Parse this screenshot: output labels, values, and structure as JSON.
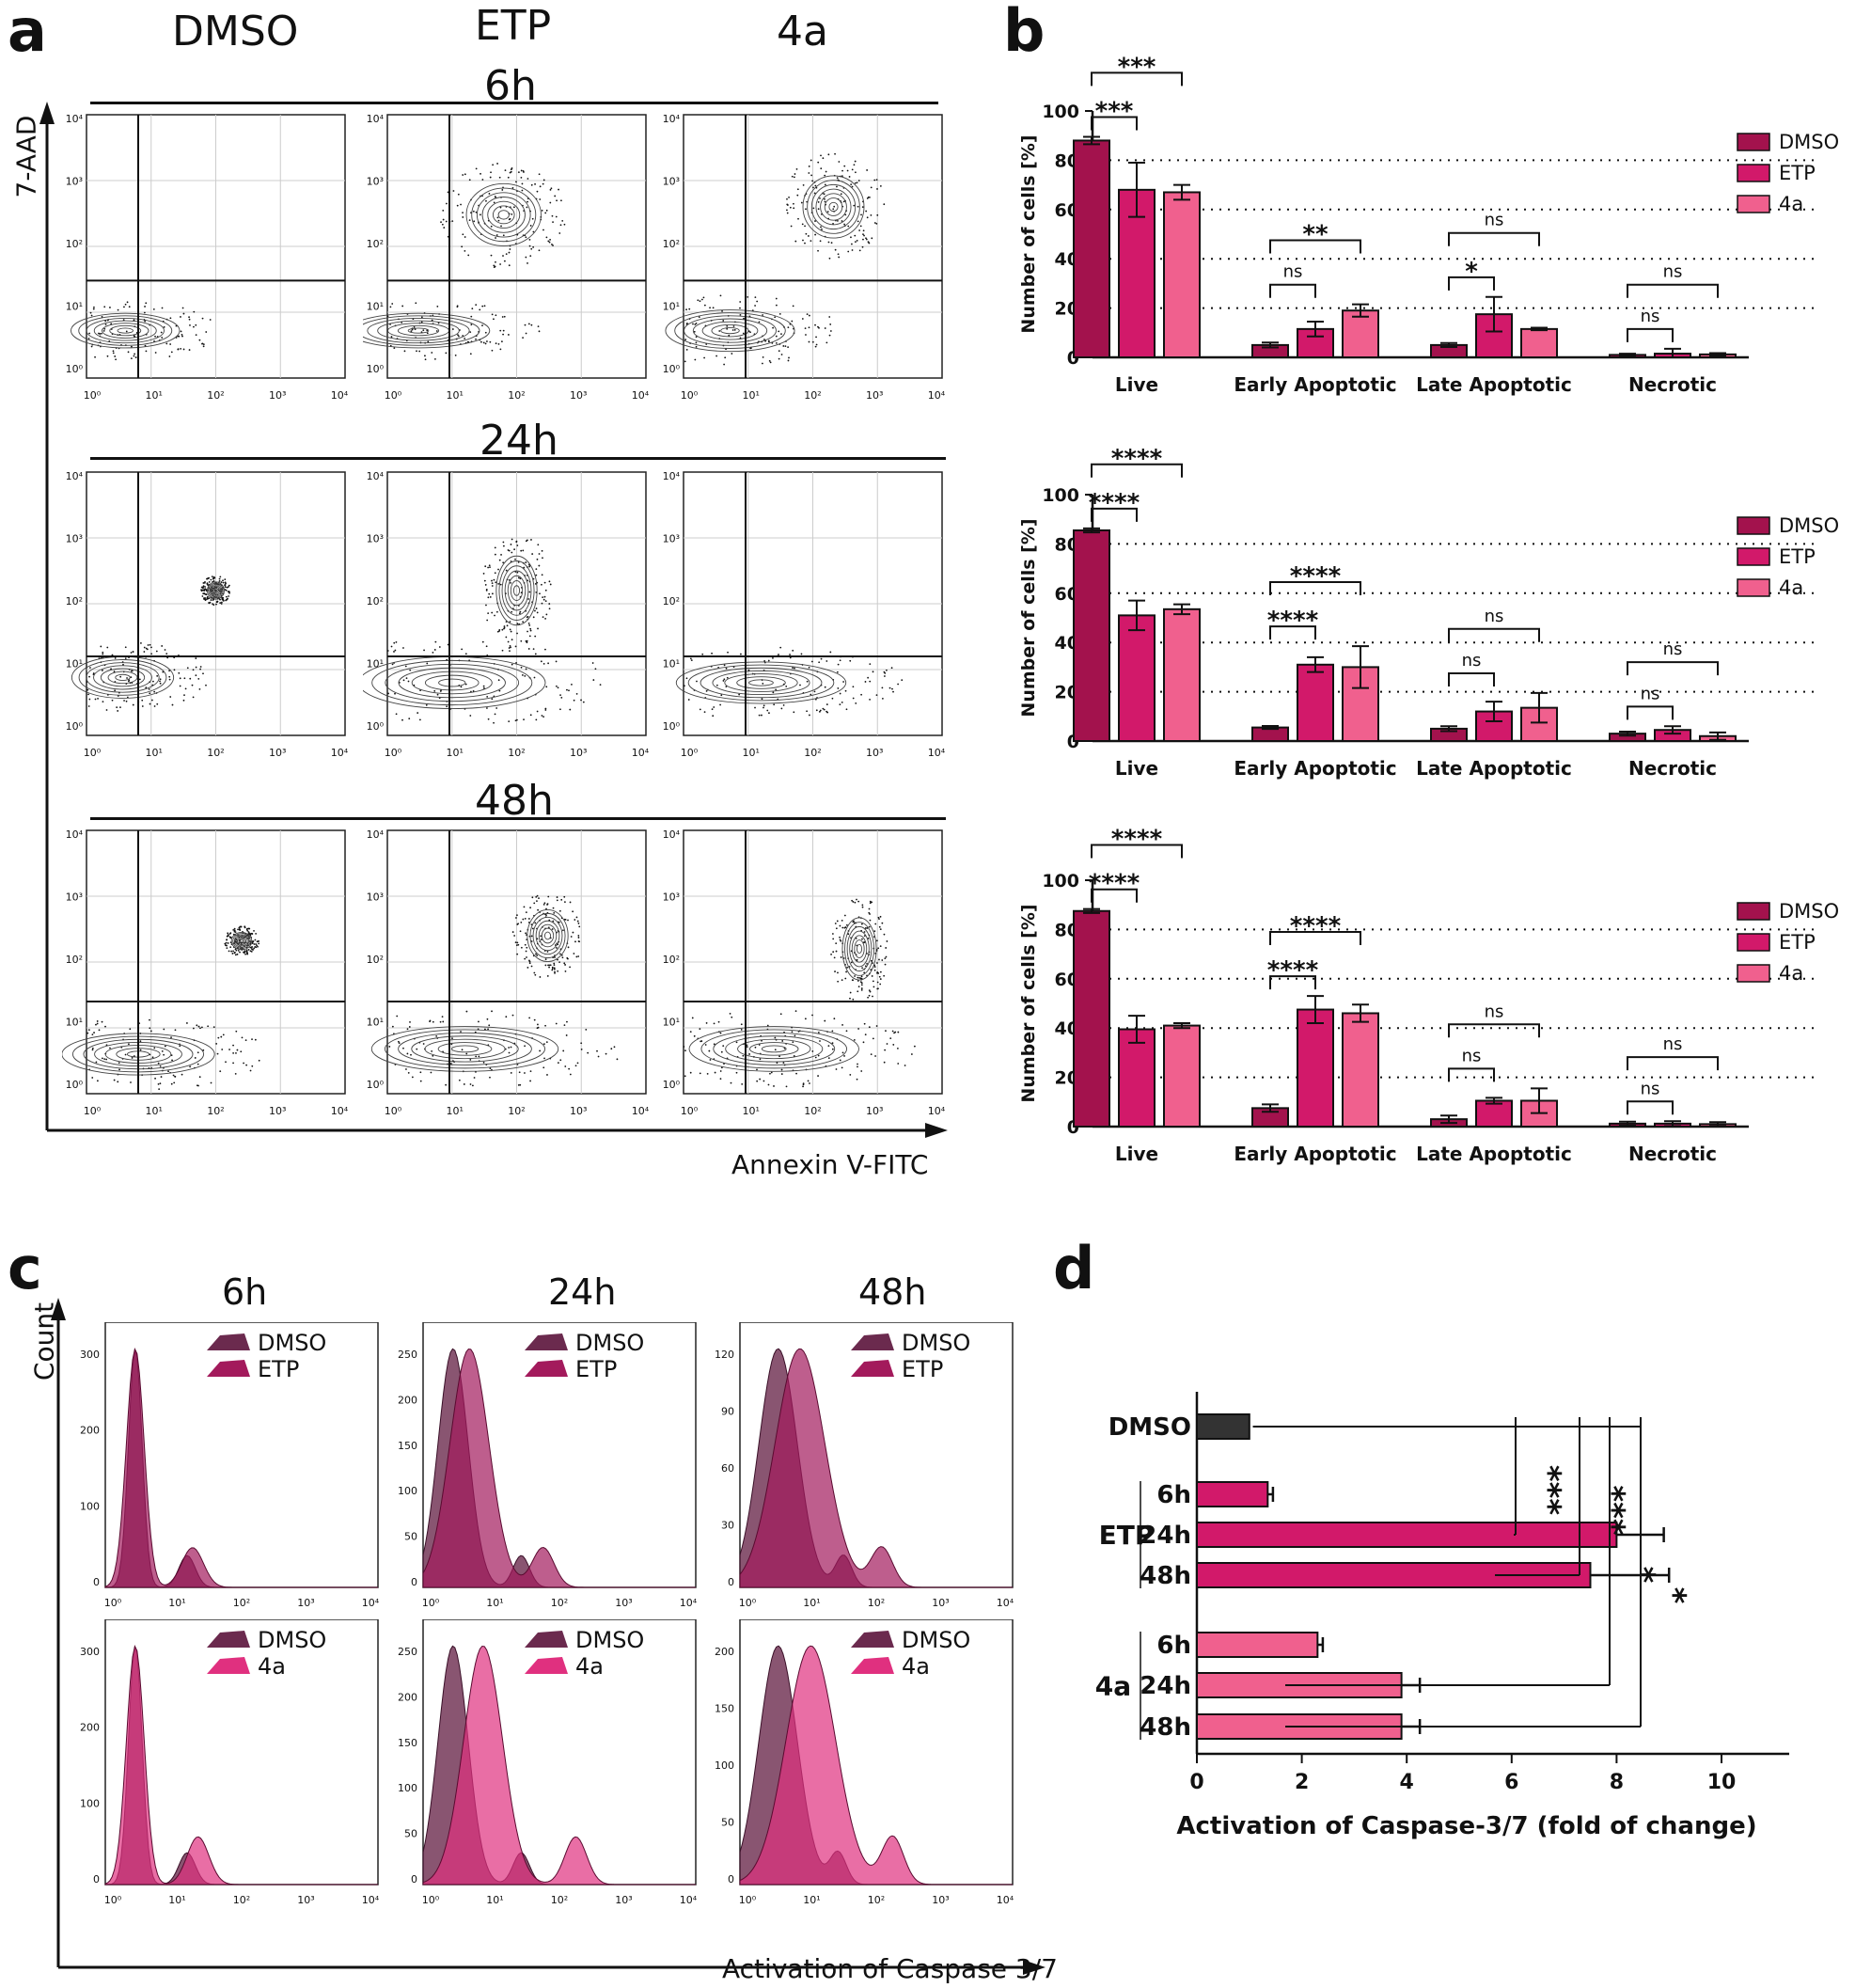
{
  "panel_a": {
    "letter": "a",
    "columns": [
      "DMSO",
      "ETP",
      "4a"
    ],
    "time_rows": [
      "6h",
      "24h",
      "48h"
    ],
    "y_axis_label": "7-AAD",
    "x_axis_label": "Annexin V-FITC",
    "tick_labels": [
      "10⁰",
      "10¹",
      "10²",
      "10³",
      "10⁴"
    ]
  },
  "panel_b": {
    "letter": "b",
    "legend": [
      "DMSO",
      "ETP",
      "4a"
    ],
    "colors": {
      "DMSO": "#a3124d",
      "ETP": "#d2196a",
      "4a": "#f0608e"
    }
  },
  "panel_c": {
    "letter": "c",
    "columns": [
      "6h",
      "24h",
      "48h"
    ],
    "y_axis_label": "Count",
    "x_axis_label": "Activation of Caspase 3/7",
    "legend_top": [
      "DMSO",
      "ETP"
    ],
    "legend_bottom": [
      "DMSO",
      "4a"
    ],
    "tick_labels": [
      "10⁰",
      "10¹",
      "10²",
      "10³",
      "10⁴"
    ],
    "y_ticks_top": [
      [
        "0",
        "100",
        "200",
        "300"
      ],
      [
        "0",
        "50",
        "100",
        "150",
        "200",
        "250"
      ],
      [
        "0",
        "30",
        "60",
        "90",
        "120"
      ]
    ],
    "y_ticks_bottom": [
      [
        "0",
        "100",
        "200",
        "300"
      ],
      [
        "0",
        "50",
        "100",
        "150",
        "200",
        "250"
      ],
      [
        "0",
        "50",
        "100",
        "150",
        "200"
      ]
    ]
  },
  "panel_d": {
    "letter": "d"
  },
  "chart_data": [
    {
      "type": "bar",
      "id": "b-6h",
      "title": "6h",
      "categories": [
        "Live",
        "Early Apoptotic",
        "Late Apoptotic",
        "Necrotic"
      ],
      "series": [
        {
          "name": "DMSO",
          "values": [
            88,
            5,
            5,
            1
          ],
          "errors": [
            1.5,
            1,
            0.8,
            0.5
          ]
        },
        {
          "name": "ETP",
          "values": [
            68,
            11.5,
            17.5,
            1.5
          ],
          "errors": [
            11,
            3,
            7,
            2
          ]
        },
        {
          "name": "4a",
          "values": [
            67,
            19,
            11.5,
            1.2
          ],
          "errors": [
            3,
            2.5,
            0.5,
            0.5
          ]
        }
      ],
      "ylabel": "Number of cells [%]",
      "ylim": [
        0,
        100
      ],
      "yticks": [
        0,
        20,
        40,
        60,
        80,
        100
      ],
      "gridlines": [
        20,
        40,
        60,
        80
      ],
      "significance": [
        {
          "category": "Live",
          "pair": [
            "DMSO",
            "ETP"
          ],
          "label": "***"
        },
        {
          "category": "Live",
          "pair": [
            "DMSO",
            "4a"
          ],
          "label": "***"
        },
        {
          "category": "Early Apoptotic",
          "pair": [
            "DMSO",
            "ETP"
          ],
          "label": "ns"
        },
        {
          "category": "Early Apoptotic",
          "pair": [
            "DMSO",
            "4a"
          ],
          "label": "**"
        },
        {
          "category": "Late Apoptotic",
          "pair": [
            "DMSO",
            "ETP"
          ],
          "label": "*"
        },
        {
          "category": "Late Apoptotic",
          "pair": [
            "DMSO",
            "4a"
          ],
          "label": "ns"
        },
        {
          "category": "Necrotic",
          "pair": [
            "DMSO",
            "ETP"
          ],
          "label": "ns"
        },
        {
          "category": "Necrotic",
          "pair": [
            "DMSO",
            "4a"
          ],
          "label": "ns"
        }
      ]
    },
    {
      "type": "bar",
      "id": "b-24h",
      "title": "24h",
      "categories": [
        "Live",
        "Early Apoptotic",
        "Late Apoptotic",
        "Necrotic"
      ],
      "series": [
        {
          "name": "DMSO",
          "values": [
            85.5,
            5.5,
            5,
            3
          ],
          "errors": [
            0.8,
            0.6,
            1,
            0.8
          ]
        },
        {
          "name": "ETP",
          "values": [
            51,
            31,
            12,
            4.5
          ],
          "errors": [
            6,
            3,
            4,
            1.5
          ]
        },
        {
          "name": "4a",
          "values": [
            53.5,
            30,
            13.5,
            2
          ],
          "errors": [
            2,
            8.5,
            6,
            1.5
          ]
        }
      ],
      "ylabel": "Number of cells [%]",
      "ylim": [
        0,
        100
      ],
      "yticks": [
        0,
        20,
        40,
        60,
        80,
        100
      ],
      "gridlines": [
        20,
        40,
        60,
        80
      ],
      "significance": [
        {
          "category": "Live",
          "pair": [
            "DMSO",
            "ETP"
          ],
          "label": "****"
        },
        {
          "category": "Live",
          "pair": [
            "DMSO",
            "4a"
          ],
          "label": "****"
        },
        {
          "category": "Early Apoptotic",
          "pair": [
            "DMSO",
            "ETP"
          ],
          "label": "****"
        },
        {
          "category": "Early Apoptotic",
          "pair": [
            "DMSO",
            "4a"
          ],
          "label": "****"
        },
        {
          "category": "Late Apoptotic",
          "pair": [
            "DMSO",
            "ETP"
          ],
          "label": "ns"
        },
        {
          "category": "Late Apoptotic",
          "pair": [
            "DMSO",
            "4a"
          ],
          "label": "ns"
        },
        {
          "category": "Necrotic",
          "pair": [
            "DMSO",
            "ETP"
          ],
          "label": "ns"
        },
        {
          "category": "Necrotic",
          "pair": [
            "DMSO",
            "4a"
          ],
          "label": "ns"
        }
      ]
    },
    {
      "type": "bar",
      "id": "b-48h",
      "title": "48h",
      "categories": [
        "Live",
        "Early Apoptotic",
        "Late Apoptotic",
        "Necrotic"
      ],
      "series": [
        {
          "name": "DMSO",
          "values": [
            87.5,
            7.5,
            3,
            1.2
          ],
          "errors": [
            0.8,
            1.5,
            1.5,
            0.8
          ]
        },
        {
          "name": "ETP",
          "values": [
            39.5,
            47.5,
            10.5,
            1.2
          ],
          "errors": [
            5.5,
            5.5,
            1.2,
            1
          ]
        },
        {
          "name": "4a",
          "values": [
            41,
            46,
            10.5,
            1
          ],
          "errors": [
            1,
            3.5,
            5,
            0.8
          ]
        }
      ],
      "ylabel": "Number of cells [%]",
      "ylim": [
        0,
        100
      ],
      "yticks": [
        0,
        20,
        40,
        60,
        80,
        100
      ],
      "gridlines": [
        20,
        40,
        60,
        80
      ],
      "significance": [
        {
          "category": "Live",
          "pair": [
            "DMSO",
            "ETP"
          ],
          "label": "****"
        },
        {
          "category": "Live",
          "pair": [
            "DMSO",
            "4a"
          ],
          "label": "****"
        },
        {
          "category": "Early Apoptotic",
          "pair": [
            "DMSO",
            "ETP"
          ],
          "label": "****"
        },
        {
          "category": "Early Apoptotic",
          "pair": [
            "DMSO",
            "4a"
          ],
          "label": "****"
        },
        {
          "category": "Late Apoptotic",
          "pair": [
            "DMSO",
            "ETP"
          ],
          "label": "ns"
        },
        {
          "category": "Late Apoptotic",
          "pair": [
            "DMSO",
            "4a"
          ],
          "label": "ns"
        },
        {
          "category": "Necrotic",
          "pair": [
            "DMSO",
            "ETP"
          ],
          "label": "ns"
        },
        {
          "category": "Necrotic",
          "pair": [
            "DMSO",
            "4a"
          ],
          "label": "ns"
        }
      ]
    },
    {
      "type": "bar",
      "id": "d",
      "orientation": "horizontal",
      "groups": [
        {
          "name": "DMSO",
          "rows": [
            {
              "label": "DMSO",
              "value": 1.0,
              "error": 0,
              "color": "#333333"
            }
          ]
        },
        {
          "name": "ETP",
          "rows": [
            {
              "label": "6h",
              "value": 1.35,
              "error": 0.1,
              "color": "#d2196a"
            },
            {
              "label": "24h",
              "value": 8.0,
              "error": 0.9,
              "color": "#d2196a"
            },
            {
              "label": "48h",
              "value": 7.5,
              "error": 1.5,
              "color": "#d2196a"
            }
          ]
        },
        {
          "name": "4a",
          "rows": [
            {
              "label": "6h",
              "value": 2.3,
              "error": 0.1,
              "color": "#f0608e"
            },
            {
              "label": "24h",
              "value": 3.9,
              "error": 0.35,
              "color": "#f0608e"
            },
            {
              "label": "48h",
              "value": 3.9,
              "error": 0.35,
              "color": "#f0608e"
            }
          ]
        }
      ],
      "xlabel": "Activation of Caspase-3/7 (fold of change)",
      "xlim": [
        0,
        11
      ],
      "xticks": [
        0,
        2,
        4,
        6,
        8,
        10
      ],
      "significance": [
        {
          "from": "DMSO",
          "to": "ETP 24h",
          "label": "***"
        },
        {
          "from": "DMSO",
          "to": "ETP 48h",
          "label": "***"
        },
        {
          "from": "DMSO",
          "to": "4a 24h",
          "label": "*"
        },
        {
          "from": "DMSO",
          "to": "4a 48h",
          "label": "*"
        }
      ]
    }
  ]
}
